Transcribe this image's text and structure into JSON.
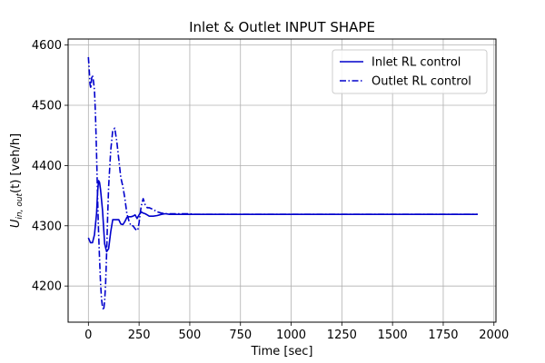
{
  "chart_data": {
    "type": "line",
    "title": "Inlet & Outlet INPUT SHAPE",
    "xlabel": "Time [sec]",
    "ylabel_main": "U",
    "ylabel_sub": "in, out",
    "ylabel_suffix": "(t) [veh/h]",
    "xlim": [
      -100,
      2010
    ],
    "ylim": [
      4140,
      4610
    ],
    "x_ticks": [
      0,
      250,
      500,
      750,
      1000,
      1250,
      1500,
      1750,
      2000
    ],
    "y_ticks": [
      4200,
      4300,
      4400,
      4500,
      4600
    ],
    "grid": true,
    "legend_position": "top-right",
    "colors": {
      "series": "#0000cc",
      "grid": "#b0b0b0",
      "axis": "#000000",
      "legend_border": "#cccccc"
    },
    "series": [
      {
        "name": "Inlet RL control",
        "style": "solid",
        "x": [
          0,
          10,
          20,
          30,
          40,
          45,
          50,
          55,
          60,
          70,
          80,
          90,
          100,
          110,
          120,
          130,
          140,
          150,
          160,
          170,
          180,
          190,
          200,
          210,
          220,
          230,
          240,
          250,
          260,
          270,
          280,
          290,
          300,
          320,
          340,
          360,
          380,
          400,
          450,
          500,
          600,
          800,
          1000,
          1250,
          1500,
          1750,
          1920
        ],
        "y": [
          4280,
          4272,
          4272,
          4285,
          4320,
          4355,
          4375,
          4372,
          4360,
          4325,
          4270,
          4257,
          4262,
          4290,
          4310,
          4310,
          4310,
          4310,
          4303,
          4302,
          4307,
          4314,
          4315,
          4315,
          4316,
          4318,
          4312,
          4318,
          4323,
          4321,
          4320,
          4318,
          4316,
          4316,
          4317,
          4319,
          4320,
          4319,
          4319,
          4319,
          4319,
          4319,
          4319,
          4319,
          4319,
          4319,
          4319
        ]
      },
      {
        "name": "Outlet RL control",
        "style": "dashdot",
        "x": [
          0,
          3,
          8,
          12,
          16,
          20,
          25,
          30,
          35,
          40,
          45,
          50,
          55,
          60,
          65,
          70,
          75,
          80,
          85,
          90,
          95,
          100,
          110,
          120,
          130,
          140,
          150,
          160,
          170,
          180,
          190,
          200,
          210,
          220,
          230,
          240,
          245,
          250,
          260,
          270,
          280,
          290,
          300,
          320,
          340,
          360,
          380,
          400,
          450,
          500,
          520,
          600,
          800,
          1000,
          1250,
          1500,
          1750,
          1920
        ],
        "y": [
          4580,
          4565,
          4535,
          4528,
          4545,
          4550,
          4540,
          4525,
          4485,
          4420,
          4350,
          4290,
          4245,
          4205,
          4178,
          4165,
          4160,
          4175,
          4205,
          4255,
          4315,
          4365,
          4425,
          4458,
          4462,
          4440,
          4410,
          4380,
          4365,
          4345,
          4320,
          4308,
          4300,
          4300,
          4295,
          4292,
          4295,
          4305,
          4332,
          4345,
          4335,
          4330,
          4330,
          4327,
          4323,
          4321,
          4320,
          4320,
          4320,
          4320,
          4319,
          4319,
          4319,
          4319,
          4319,
          4319,
          4319,
          4319
        ]
      }
    ]
  }
}
